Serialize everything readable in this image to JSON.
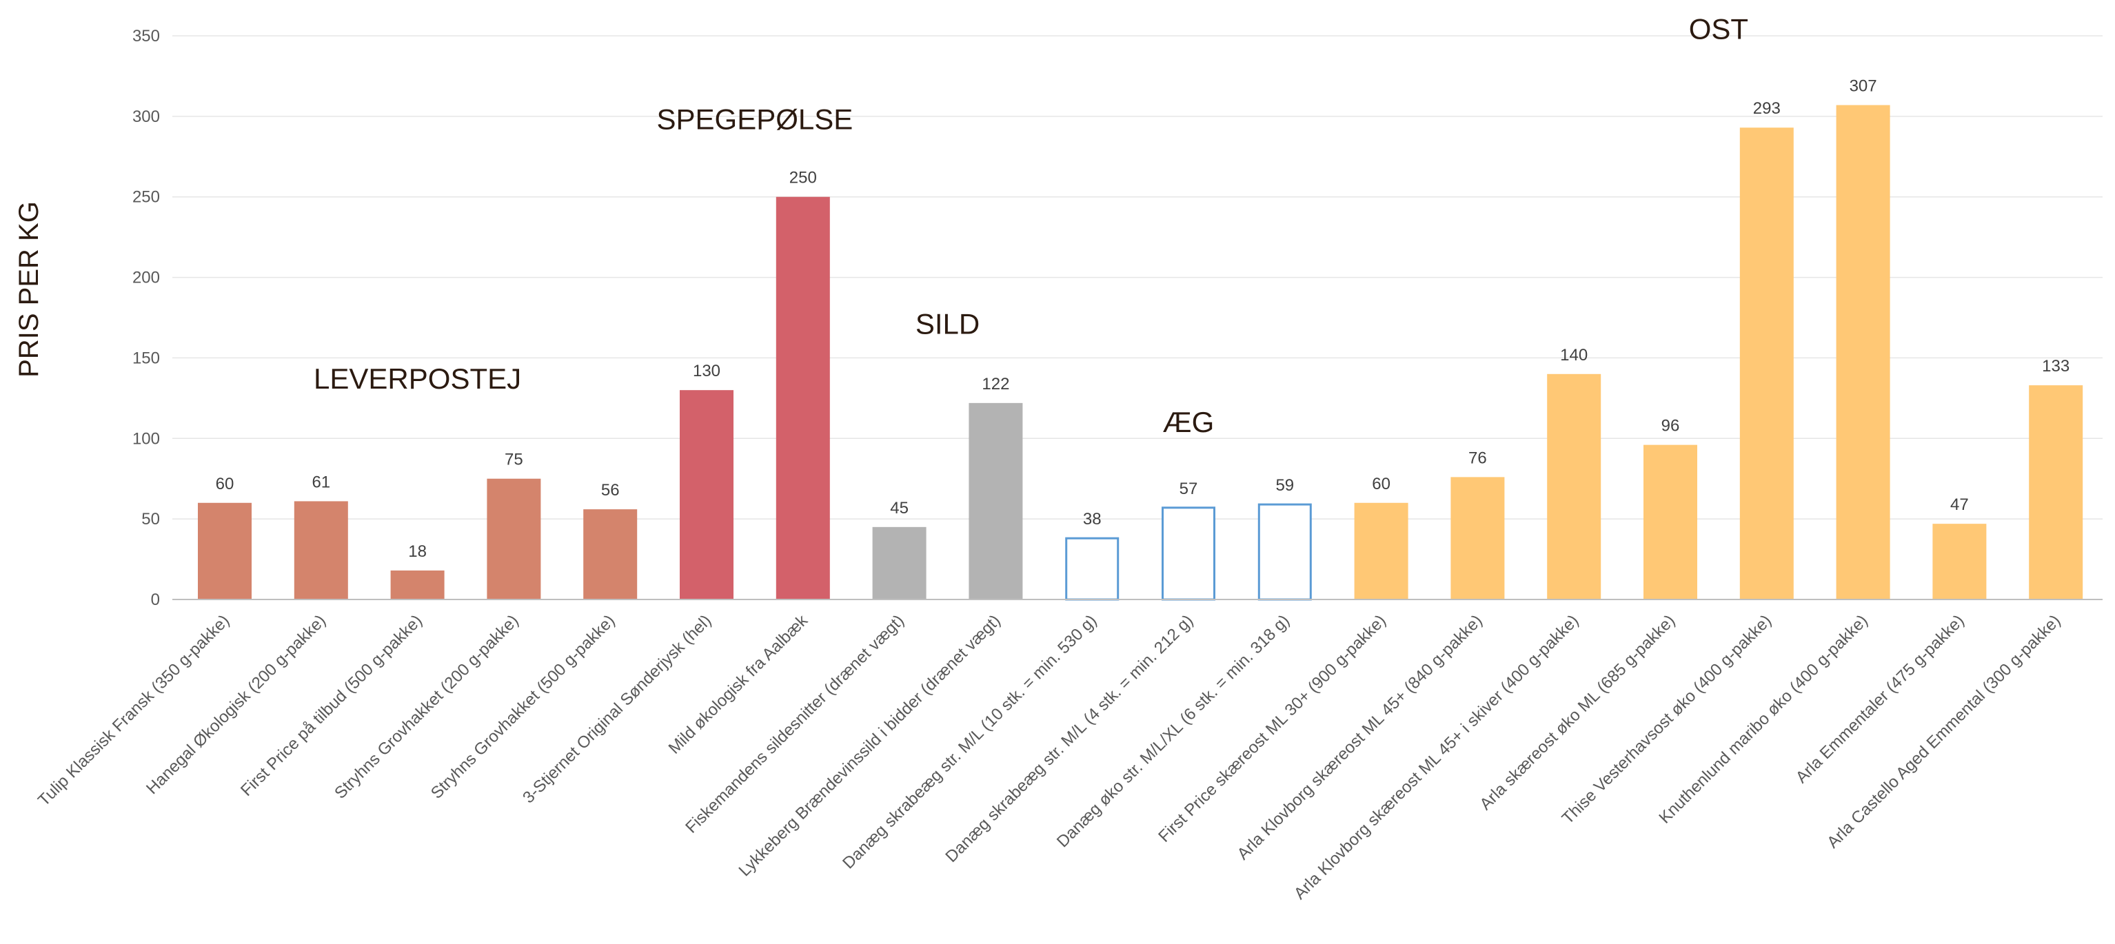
{
  "chart_data": {
    "type": "bar",
    "ylabel": "PRIS PER KG",
    "xlabel": "",
    "title": "",
    "ylim": [
      0,
      350
    ],
    "yticks": [
      0,
      50,
      100,
      150,
      200,
      250,
      300,
      350
    ],
    "grid": true,
    "legend": "none",
    "categories": [
      "Tulip Klassisk Fransk (350 g-pakke)",
      "Hanegal Økologisk (200 g-pakke)",
      "First Price på tilbud (500 g-pakke)",
      "Stryhns Grovhakket (200 g-pakke)",
      "Stryhns Grovhakket (500 g-pakke)",
      "3-Stjernet Original Sønderjysk (hel)",
      "Mild økologisk fra Aalbæk",
      "Fiskemandens sildesnitter (drænet vægt)",
      "Lykkeberg Brændevinssild i bidder (drænet vægt)",
      "Danæg skrabeæg str. M/L (10 stk. = min. 530 g)",
      "Danæg skrabeæg str. M/L (4 stk. = min. 212 g)",
      "Danæg øko str. M/L/XL (6 stk. = min. 318 g)",
      "First Price skæreost ML 30+ (900 g-pakke)",
      "Arla Klovborg skæreost ML 45+ (840 g-pakke)",
      "Arla Klovborg skæreost ML 45+ i skiver (400 g-pakke)",
      "Arla skæreost øko ML (685 g-pakke)",
      "Thise Vesterhavsost øko (400 g-pakke)",
      "Knuthenlund maribo øko (400 g-pakke)",
      "Arla Emmentaler (475 g-pakke)",
      "Arla Castello Aged Emmental (300 g-pakke)"
    ],
    "values": [
      60,
      61,
      18,
      75,
      56,
      130,
      250,
      45,
      122,
      38,
      57,
      59,
      60,
      76,
      140,
      96,
      293,
      307,
      47,
      133
    ],
    "data_labels": [
      "60",
      "61",
      "18",
      "75",
      "56",
      "130",
      "250",
      "45",
      "122",
      "38",
      "57",
      "59",
      "60",
      "76",
      "140",
      "96",
      "293",
      "307",
      "47",
      "133"
    ],
    "groups": [
      {
        "name": "LEVERPOSTEJ",
        "first": 0,
        "last": 4,
        "color": "#d4846c",
        "style": "filled",
        "label_value": 137
      },
      {
        "name": "SPEGEPØLSE",
        "first": 5,
        "last": 6,
        "color": "#d3616a",
        "style": "filled",
        "label_value": 298
      },
      {
        "name": "SILD",
        "first": 7,
        "last": 8,
        "color": "#b3b3b3",
        "style": "filled",
        "label_value": 171
      },
      {
        "name": "ÆG",
        "first": 9,
        "last": 11,
        "color": "#5b9bd5",
        "style": "outline",
        "label_value": 110
      },
      {
        "name": "OST",
        "first": 12,
        "last": 19,
        "color": "#ffc875",
        "style": "filled",
        "label_value": 354
      }
    ]
  }
}
